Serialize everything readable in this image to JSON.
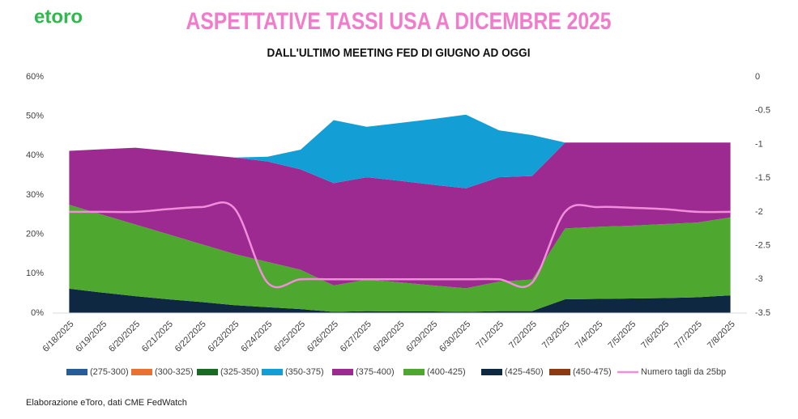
{
  "logo": "etoro",
  "chart_data": {
    "type": "area",
    "stacked": true,
    "title": "ASPETTATIVE TASSI USA A DICEMBRE 2025",
    "subtitle": "DALL'ULTIMO MEETING FED DI GIUGNO AD OGGI",
    "source": "Elaborazione eToro, dati CME FedWatch",
    "categories": [
      "6/18/2025",
      "6/19/2025",
      "6/20/2025",
      "6/21/2025",
      "6/22/2025",
      "6/23/2025",
      "6/24/2025",
      "6/25/2025",
      "6/26/2025",
      "6/27/2025",
      "6/28/2025",
      "6/29/2025",
      "6/30/2025",
      "7/1/2025",
      "7/2/2025",
      "7/3/2025",
      "7/4/2025",
      "7/5/2025",
      "7/6/2025",
      "7/7/2025",
      "7/8/2025"
    ],
    "ylim": [
      0,
      60
    ],
    "yticks": [
      {
        "value": 0,
        "label": "0%"
      },
      {
        "value": 10,
        "label": "10%"
      },
      {
        "value": 20,
        "label": "20%"
      },
      {
        "value": 30,
        "label": "30%"
      },
      {
        "value": 40,
        "label": "40%"
      },
      {
        "value": 50,
        "label": "50%"
      },
      {
        "value": 60,
        "label": "60%"
      }
    ],
    "y2lim": [
      -3.5,
      0
    ],
    "y2ticks": [
      0,
      -0.5,
      -1,
      -1.5,
      -2,
      -2.5,
      -3,
      -3.5
    ],
    "series": [
      {
        "name": "(275-300)",
        "color": "#265d96",
        "values": [
          0,
          0,
          0,
          0,
          0,
          0,
          0,
          0,
          0,
          0,
          0,
          0,
          0,
          0,
          0,
          0,
          0,
          0,
          0,
          0,
          0
        ]
      },
      {
        "name": "(300-325)",
        "color": "#e97132",
        "values": [
          0,
          0,
          0,
          0,
          0,
          0,
          0,
          0,
          0,
          0,
          0,
          0,
          0,
          0,
          0,
          0,
          0,
          0,
          0,
          0,
          0
        ]
      },
      {
        "name": "(325-350)",
        "color": "#196b24",
        "values": [
          0,
          0,
          0,
          0,
          0,
          0,
          0,
          0,
          0,
          0,
          0,
          0,
          0,
          0,
          0,
          0,
          0,
          0,
          0,
          0,
          0
        ]
      },
      {
        "name": "(350-375)",
        "color": "#139fd6",
        "values": [
          0,
          0,
          0,
          0,
          0,
          0,
          1.2,
          5.0,
          16.0,
          12.8,
          14.7,
          16.7,
          18.7,
          11.9,
          10.4,
          0,
          0,
          0,
          0,
          0,
          0
        ]
      },
      {
        "name": "(375-400)",
        "color": "#9c2a91",
        "values": [
          13.7,
          16.6,
          19.5,
          21.2,
          22.8,
          24.5,
          25.5,
          25.5,
          26.0,
          26.0,
          25.8,
          25.6,
          25.4,
          26.5,
          26.3,
          21.8,
          21.4,
          21.1,
          20.7,
          20.3,
          19.0
        ]
      },
      {
        "name": "(400-425)",
        "color": "#4ea72e",
        "values": [
          21.3,
          19.8,
          18.2,
          16.5,
          14.7,
          13.0,
          11.5,
          10.0,
          6.7,
          8.0,
          7.4,
          6.6,
          6.0,
          7.5,
          8.0,
          18.0,
          18.3,
          18.5,
          18.8,
          19.0,
          19.8
        ]
      },
      {
        "name": "(425-450)",
        "color": "#0e2841",
        "values": [
          6.2,
          5.2,
          4.3,
          3.5,
          2.8,
          2.0,
          1.5,
          1.0,
          0.3,
          0.5,
          0.4,
          0.4,
          0.3,
          0.5,
          0.5,
          3.5,
          3.6,
          3.7,
          3.8,
          4.0,
          4.5
        ]
      },
      {
        "name": "(450-475)",
        "color": "#8b3a12",
        "values": [
          0,
          0,
          0,
          0,
          0,
          0,
          0,
          0,
          0,
          0,
          0,
          0,
          0,
          0,
          0,
          0,
          0,
          0,
          0,
          0,
          0
        ]
      },
      {
        "name": "Numero tagli da 25bp",
        "color": "#f28ddc",
        "type": "line",
        "axis": "y2",
        "values": [
          -2,
          -2,
          -2,
          -1.96,
          -1.93,
          -1.95,
          -3.05,
          -3,
          -3,
          -3,
          -3,
          -3,
          -3,
          -3,
          -3.05,
          -2,
          -1.93,
          -1.94,
          -1.96,
          -2,
          -2
        ]
      }
    ]
  }
}
